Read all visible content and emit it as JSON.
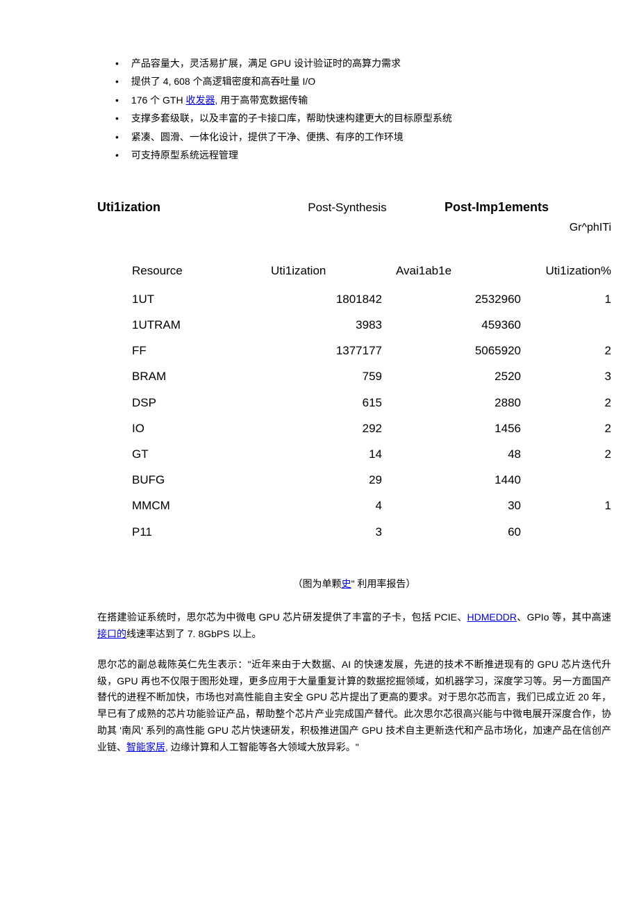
{
  "bullets": {
    "items": [
      {
        "pre": "产品容量大，灵活易扩展，满足 GPU 设计验证时的高算力需求",
        "link": "",
        "post": ""
      },
      {
        "pre": "提供了 4, 608 个高逻辑密度和高吞吐量 I/O",
        "link": "",
        "post": ""
      },
      {
        "pre": "176 个 GTH ",
        "link": "收发器,",
        "post": " 用于高带宽数据传输"
      },
      {
        "pre": "支撑多套级联，以及丰富的子卡接口库，帮助快速构建更大的目标原型系统",
        "link": "",
        "post": ""
      },
      {
        "pre": "紧凑、圆滑、一体化设计，提供了干净、便携、有序的工作环境",
        "link": "",
        "post": ""
      },
      {
        "pre": "可支持原型系统远程管理",
        "link": "",
        "post": ""
      }
    ]
  },
  "tabs": {
    "utilization": "Uti1ization",
    "post_synthesis": "Post-Synthesis",
    "post_implements": "Post-Imp1ements",
    "graph": "Gr^phITi"
  },
  "table": {
    "headers": {
      "resource": "Resource",
      "utilization": "Uti1ization",
      "available": "Avai1ab1e",
      "pct": "Uti1ization%"
    },
    "rows": [
      {
        "resource": "1UT",
        "util": "1801842",
        "avail": "2532960",
        "pct": "1"
      },
      {
        "resource": "1UTRAM",
        "util": "3983",
        "avail": "459360",
        "pct": ""
      },
      {
        "resource": "FF",
        "util": "1377177",
        "avail": "5065920",
        "pct": "2"
      },
      {
        "resource": "BRAM",
        "util": "759",
        "avail": "2520",
        "pct": "3"
      },
      {
        "resource": "DSP",
        "util": "615",
        "avail": "2880",
        "pct": "2"
      },
      {
        "resource": "IO",
        "util": "292",
        "avail": "1456",
        "pct": "2"
      },
      {
        "resource": "GT",
        "util": "14",
        "avail": "48",
        "pct": "2"
      },
      {
        "resource": "BUFG",
        "util": "29",
        "avail": "1440",
        "pct": ""
      },
      {
        "resource": "MMCM",
        "util": "4",
        "avail": "30",
        "pct": "1"
      },
      {
        "resource": "P11",
        "util": "3",
        "avail": "60",
        "pct": ""
      }
    ]
  },
  "caption": {
    "pre": "（图为单颗",
    "link": "史",
    "post": "\" 利用率报告）"
  },
  "para1": {
    "pre": "在搭建验证系统时，思尔芯为中微电 GPU 芯片研发提供了丰富的子卡，包括 PCIE、",
    "link1": "HDMEDDR",
    "mid": "、GPIo 等，其中高速",
    "link2": "接口的",
    "post": "线速率达到了 7. 8GbPS 以上。"
  },
  "para2": {
    "pre": "思尔芯的副总裁陈英仁先生表示：\"近年来由于大数据、AI 的快速发展，先进的技术不断推进现有的 GPU 芯片迭代升级，GPU 再也不仅限于图形处理，更多应用于大量重复计算的数据挖掘领域，如机器学习，深度学习等。另一方面国产替代的进程不断加快，市场也对高性能自主安全 GPU 芯片提出了更高的要求。对于思尔芯而言，我们已成立近 20 年，早已有了成熟的芯片功能验证产品，帮助整个芯片产业完成国产替代。此次思尔芯很高兴能与中微电展开深度合作，协助其 '南风' 系列的高性能 GPU 芯片快速研发，积极推进国产 GPU 技术自主更新迭代和产品市场化，加速产品在信创产业链、",
    "link": "智能家居,",
    "post": " 边缘计算和人工智能等各大领域大放异彩。\""
  },
  "styling": {
    "background_color": "#ffffff",
    "text_color": "#000000",
    "link_color": "#0000ee",
    "body_font": "Microsoft YaHei, SimSun, Arial, sans-serif",
    "table_font": "Arial, sans-serif",
    "body_font_size": 14,
    "table_font_size": 17,
    "tab_font_size": 18,
    "bullet_char": "•"
  }
}
